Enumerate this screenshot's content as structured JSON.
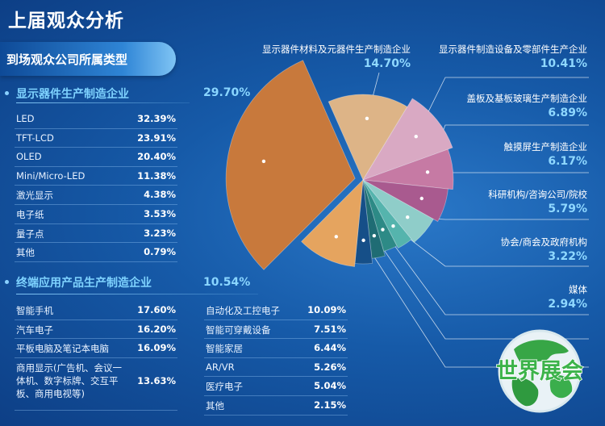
{
  "page": {
    "title": "上届观众分析",
    "subtitle": "到场观众公司所属类型"
  },
  "sections": [
    {
      "title": "显示器件生产制造企业",
      "percent": "29.70%",
      "rows": [
        {
          "name": "LED",
          "value": "32.39%"
        },
        {
          "name": "TFT-LCD",
          "value": "23.91%"
        },
        {
          "name": "OLED",
          "value": "20.40%"
        },
        {
          "name": "Mini/Micro-LED",
          "value": "11.38%"
        },
        {
          "name": "激光显示",
          "value": "4.38%"
        },
        {
          "name": "电子纸",
          "value": "3.53%"
        },
        {
          "name": "量子点",
          "value": "3.23%"
        },
        {
          "name": "其他",
          "value": "0.79%"
        }
      ]
    },
    {
      "title": "终端应用产品生产制造企业",
      "percent": "10.54%",
      "rows_left": [
        {
          "name": "智能手机",
          "value": "17.60%"
        },
        {
          "name": "汽车电子",
          "value": "16.20%"
        },
        {
          "name": "平板电脑及笔记本电脑",
          "value": "16.09%"
        },
        {
          "name": "商用显示(广告机、会议一体机、数字标牌、交互平板、商用电视等)",
          "value": "13.63%"
        }
      ],
      "rows_right": [
        {
          "name": "自动化及工控电子",
          "value": "10.09%"
        },
        {
          "name": "智能可穿戴设备",
          "value": "7.51%"
        },
        {
          "name": "智能家居",
          "value": "6.44%"
        },
        {
          "name": "AR/VR",
          "value": "5.26%"
        },
        {
          "name": "医疗电子",
          "value": "5.04%"
        },
        {
          "name": "其他",
          "value": "2.15%"
        }
      ]
    }
  ],
  "chart_data": {
    "type": "pie",
    "slices": [
      {
        "name": "显示器件生产制造企业",
        "value": 29.7,
        "color": "#c8793c"
      },
      {
        "name": "显示器件材料及元器件生产制造企业",
        "value": 14.7,
        "color": "#ddb487"
      },
      {
        "name": "显示器件制造设备及零部件生产企业",
        "value": 10.41,
        "color": "#d9a9c3"
      },
      {
        "name": "盖板及基板玻璃生产制造企业",
        "value": 6.89,
        "color": "#c67aa4"
      },
      {
        "name": "触摸屏生产制造企业",
        "value": 6.17,
        "color": "#a95a8f"
      },
      {
        "name": "科研机构/咨询公司/院校",
        "value": 5.79,
        "color": "#8fcdc9"
      },
      {
        "name": "协会/商会及政府机构",
        "value": 3.22,
        "color": "#55b4ad"
      },
      {
        "name": "媒体",
        "value": 2.94,
        "color": "#2d8a86"
      },
      {
        "name": "",
        "value": 2.6,
        "color": "#1f6c74"
      },
      {
        "name": "",
        "value": 3.2,
        "color": "#164f88"
      },
      {
        "name": "终端应用产品生产制造企业",
        "value": 10.54,
        "color": "#e5a45f"
      }
    ]
  },
  "right_labels": [
    {
      "name": "显示器件材料及元器件生产制造企业",
      "value": "14.70%"
    },
    {
      "name": "显示器件制造设备及零部件生产企业",
      "value": "10.41%"
    },
    {
      "name": "盖板及基板玻璃生产制造企业",
      "value": "6.89%"
    },
    {
      "name": "触摸屏生产制造企业",
      "value": "6.17%"
    },
    {
      "name": "科研机构/咨询公司/院校",
      "value": "5.79%"
    },
    {
      "name": "协会/商会及政府机构",
      "value": "3.22%"
    },
    {
      "name": "媒体",
      "value": "2.94%"
    }
  ],
  "logo": {
    "text": "世界展会"
  }
}
